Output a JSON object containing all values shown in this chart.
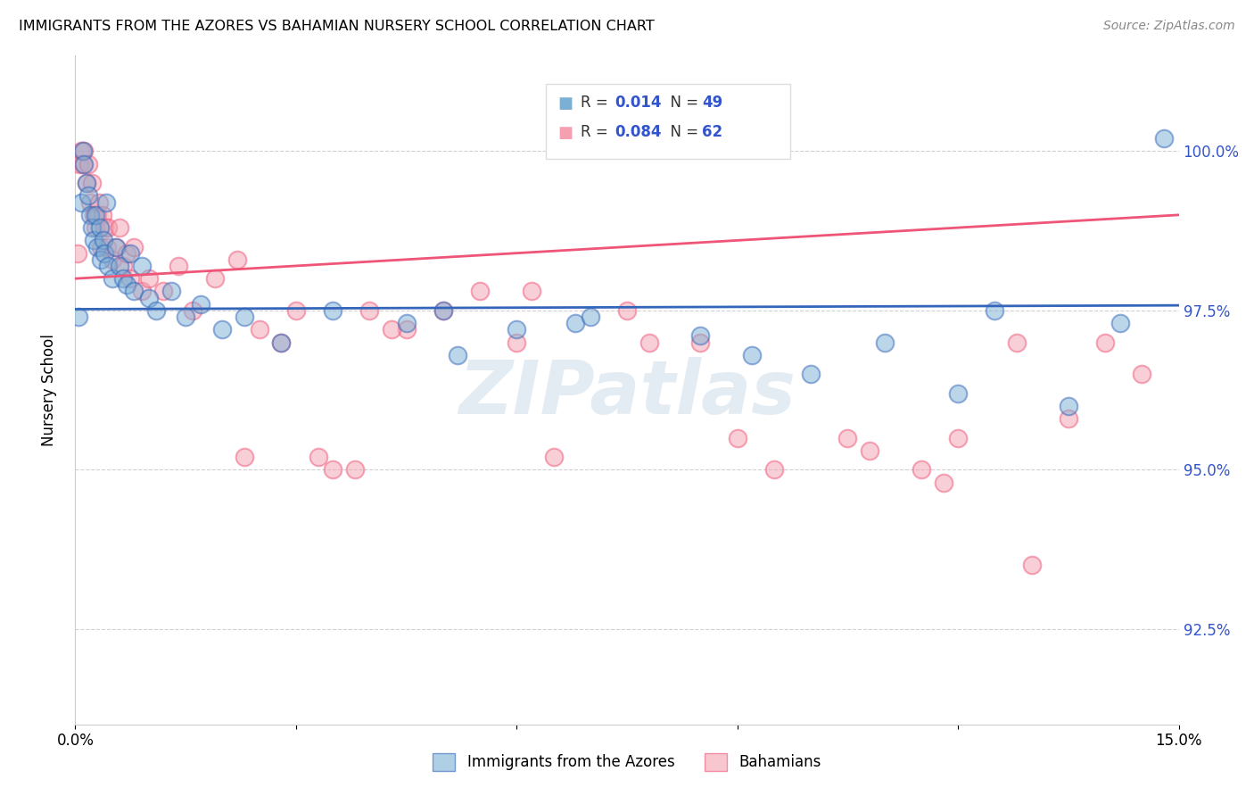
{
  "title": "IMMIGRANTS FROM THE AZORES VS BAHAMIAN NURSERY SCHOOL CORRELATION CHART",
  "source": "Source: ZipAtlas.com",
  "ylabel": "Nursery School",
  "ytick_labels": [
    "92.5%",
    "95.0%",
    "97.5%",
    "100.0%"
  ],
  "ytick_values": [
    92.5,
    95.0,
    97.5,
    100.0
  ],
  "xlim": [
    0.0,
    15.0
  ],
  "ylim": [
    91.0,
    101.5
  ],
  "legend_label1": "Immigrants from the Azores",
  "legend_label2": "Bahamians",
  "R1": "0.014",
  "N1": "49",
  "R2": "0.084",
  "N2": "62",
  "color_blue": "#7BAFD4",
  "color_pink": "#F4A0B0",
  "color_blue_line": "#3366BB",
  "color_pink_line": "#EE5577",
  "color_blue_text": "#3355CC",
  "watermark": "ZIPatlas",
  "blue_x": [
    0.05,
    0.08,
    0.1,
    0.12,
    0.15,
    0.18,
    0.2,
    0.22,
    0.25,
    0.28,
    0.3,
    0.33,
    0.35,
    0.38,
    0.4,
    0.42,
    0.45,
    0.5,
    0.55,
    0.6,
    0.65,
    0.7,
    0.75,
    0.8,
    0.9,
    1.0,
    1.1,
    1.3,
    1.5,
    1.7,
    2.0,
    2.3,
    2.8,
    3.5,
    4.5,
    5.0,
    5.2,
    6.0,
    6.8,
    7.0,
    8.5,
    9.2,
    10.0,
    11.0,
    12.0,
    12.5,
    13.5,
    14.2,
    14.8
  ],
  "blue_y": [
    97.4,
    99.2,
    100.0,
    99.8,
    99.5,
    99.3,
    99.0,
    98.8,
    98.6,
    99.0,
    98.5,
    98.8,
    98.3,
    98.6,
    98.4,
    99.2,
    98.2,
    98.0,
    98.5,
    98.2,
    98.0,
    97.9,
    98.4,
    97.8,
    98.2,
    97.7,
    97.5,
    97.8,
    97.4,
    97.6,
    97.2,
    97.4,
    97.0,
    97.5,
    97.3,
    97.5,
    96.8,
    97.2,
    97.3,
    97.4,
    97.1,
    96.8,
    96.5,
    97.0,
    96.2,
    97.5,
    96.0,
    97.3,
    100.2
  ],
  "pink_x": [
    0.03,
    0.06,
    0.08,
    0.1,
    0.12,
    0.15,
    0.18,
    0.2,
    0.22,
    0.25,
    0.28,
    0.3,
    0.32,
    0.35,
    0.37,
    0.4,
    0.43,
    0.45,
    0.5,
    0.55,
    0.6,
    0.65,
    0.7,
    0.75,
    0.8,
    0.9,
    1.0,
    1.2,
    1.4,
    1.6,
    1.9,
    2.2,
    2.5,
    2.8,
    3.0,
    3.3,
    3.5,
    4.0,
    4.5,
    5.5,
    6.0,
    6.5,
    7.5,
    8.5,
    9.5,
    10.5,
    11.5,
    12.0,
    13.0,
    13.5,
    14.0,
    14.5,
    2.3,
    3.8,
    5.0,
    6.2,
    7.8,
    9.0,
    10.8,
    12.8,
    4.3,
    11.8
  ],
  "pink_y": [
    98.4,
    99.8,
    100.0,
    99.8,
    100.0,
    99.5,
    99.8,
    99.2,
    99.5,
    99.0,
    98.8,
    99.0,
    99.2,
    98.5,
    99.0,
    98.8,
    98.5,
    98.8,
    98.3,
    98.5,
    98.8,
    98.2,
    98.4,
    98.0,
    98.5,
    97.8,
    98.0,
    97.8,
    98.2,
    97.5,
    98.0,
    98.3,
    97.2,
    97.0,
    97.5,
    95.2,
    95.0,
    97.5,
    97.2,
    97.8,
    97.0,
    95.2,
    97.5,
    97.0,
    95.0,
    95.5,
    95.0,
    95.5,
    93.5,
    95.8,
    97.0,
    96.5,
    95.2,
    95.0,
    97.5,
    97.8,
    97.0,
    95.5,
    95.3,
    97.0,
    97.2,
    94.8
  ]
}
